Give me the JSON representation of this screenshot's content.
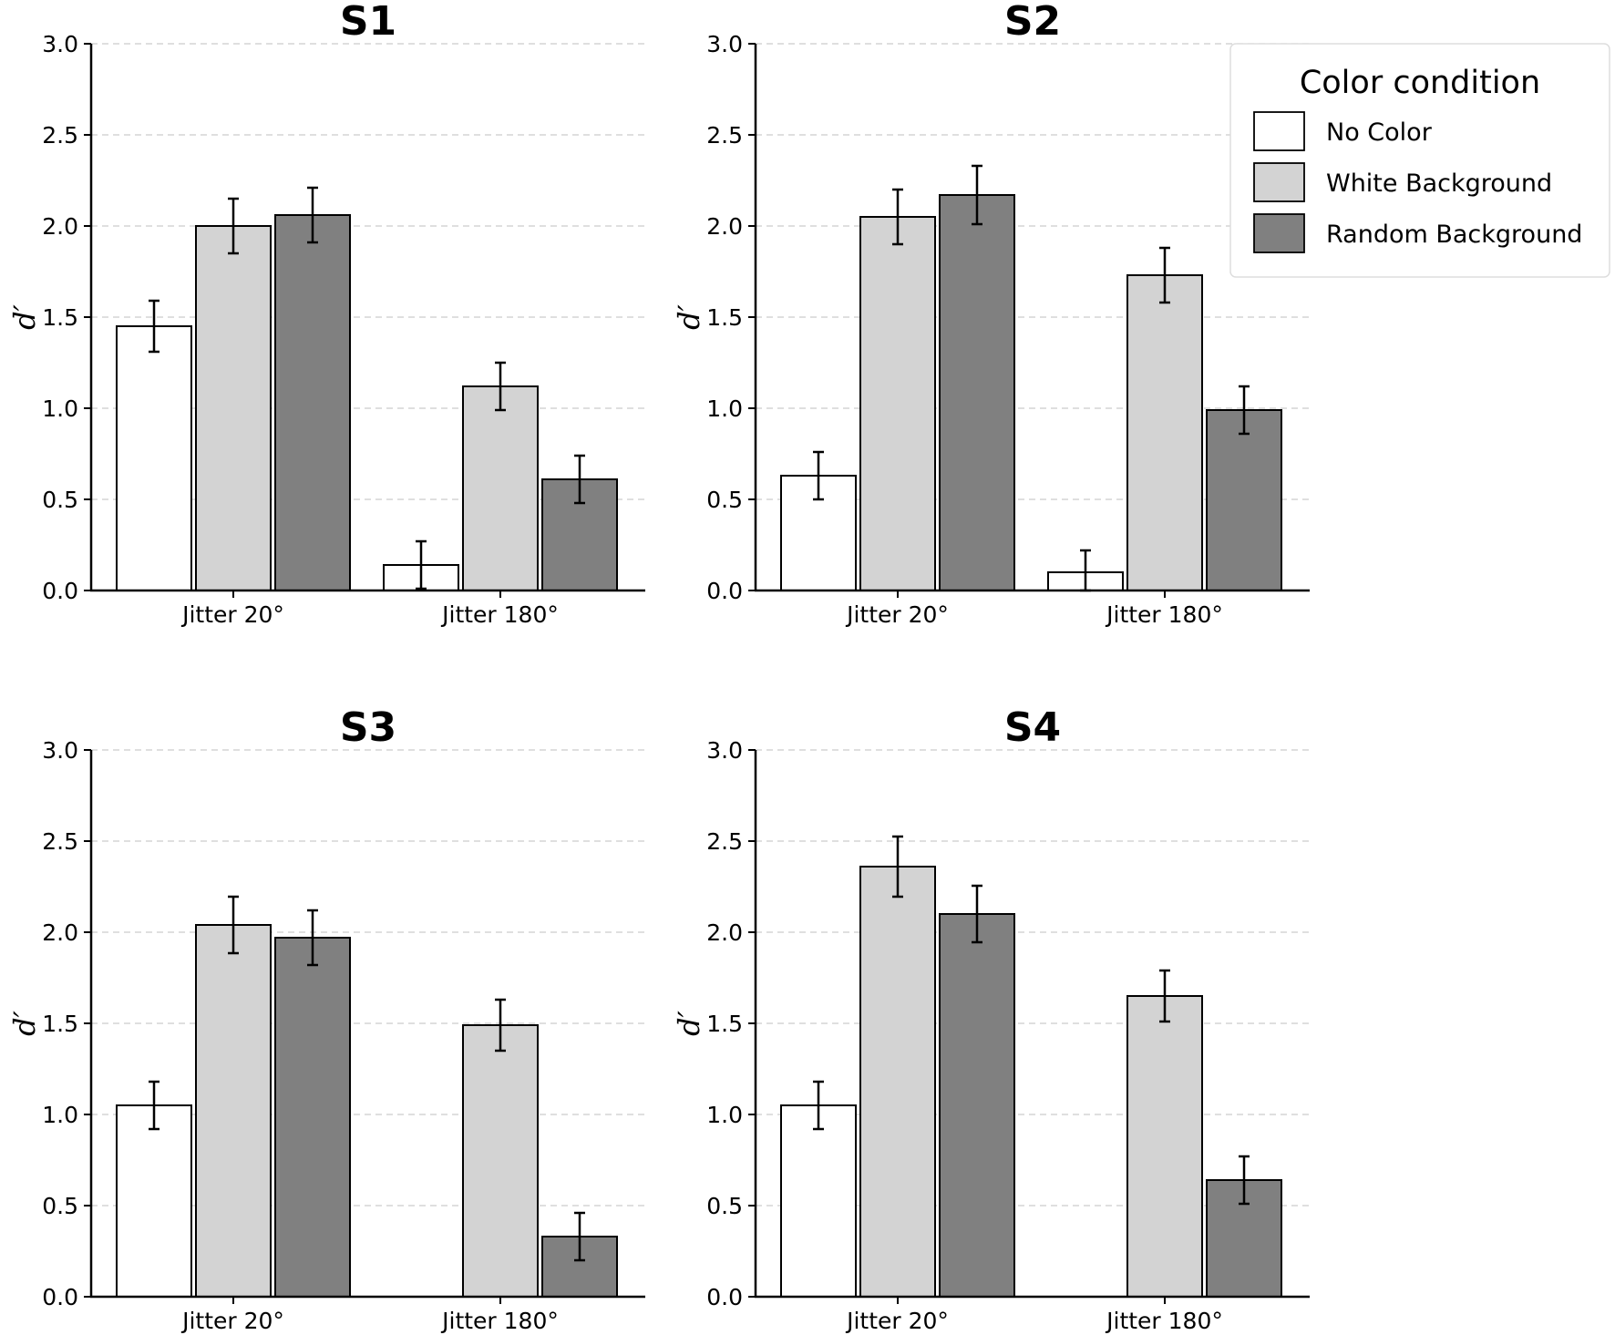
{
  "chart_data": [
    {
      "type": "bar",
      "title": "S1",
      "ylabel": "d′",
      "ylim": [
        0,
        3.0
      ],
      "yticks": [
        "0.0",
        "0.5",
        "1.0",
        "1.5",
        "2.0",
        "2.5",
        "3.0"
      ],
      "grid": "horizontal-dashed",
      "categories": [
        "Jitter 20°",
        "Jitter 180°"
      ],
      "series": [
        {
          "name": "No Color",
          "values": [
            1.45,
            0.14
          ],
          "errors": [
            0.14,
            0.13
          ]
        },
        {
          "name": "White Background",
          "values": [
            2.0,
            1.12
          ],
          "errors": [
            0.15,
            0.13
          ]
        },
        {
          "name": "Random Background",
          "values": [
            2.06,
            0.61
          ],
          "errors": [
            0.15,
            0.13
          ]
        }
      ]
    },
    {
      "type": "bar",
      "title": "S2",
      "ylabel": "d′",
      "ylim": [
        0,
        3.0
      ],
      "yticks": [
        "0.0",
        "0.5",
        "1.0",
        "1.5",
        "2.0",
        "2.5",
        "3.0"
      ],
      "grid": "horizontal-dashed",
      "categories": [
        "Jitter 20°",
        "Jitter 180°"
      ],
      "series": [
        {
          "name": "No Color",
          "values": [
            0.63,
            0.1
          ],
          "errors": [
            0.13,
            0.12
          ]
        },
        {
          "name": "White Background",
          "values": [
            2.05,
            1.73
          ],
          "errors": [
            0.15,
            0.15
          ]
        },
        {
          "name": "Random Background",
          "values": [
            2.17,
            0.99
          ],
          "errors": [
            0.16,
            0.13
          ]
        }
      ]
    },
    {
      "type": "bar",
      "title": "S3",
      "ylabel": "d′",
      "ylim": [
        0,
        3.0
      ],
      "yticks": [
        "0.0",
        "0.5",
        "1.0",
        "1.5",
        "2.0",
        "2.5",
        "3.0"
      ],
      "grid": "horizontal-dashed",
      "categories": [
        "Jitter 20°",
        "Jitter 180°"
      ],
      "series": [
        {
          "name": "No Color",
          "values": [
            1.05,
            0.0
          ],
          "errors": [
            0.13,
            0
          ]
        },
        {
          "name": "White Background",
          "values": [
            2.04,
            1.49
          ],
          "errors": [
            0.155,
            0.14
          ]
        },
        {
          "name": "Random Background",
          "values": [
            1.97,
            0.33
          ],
          "errors": [
            0.15,
            0.13
          ]
        }
      ]
    },
    {
      "type": "bar",
      "title": "S4",
      "ylabel": "d′",
      "ylim": [
        0,
        3.0
      ],
      "yticks": [
        "0.0",
        "0.5",
        "1.0",
        "1.5",
        "2.0",
        "2.5",
        "3.0"
      ],
      "grid": "horizontal-dashed",
      "categories": [
        "Jitter 20°",
        "Jitter 180°"
      ],
      "series": [
        {
          "name": "No Color",
          "values": [
            1.05,
            0.0
          ],
          "errors": [
            0.13,
            0
          ]
        },
        {
          "name": "White Background",
          "values": [
            2.36,
            1.65
          ],
          "errors": [
            0.165,
            0.14
          ]
        },
        {
          "name": "Random Background",
          "values": [
            2.1,
            0.64
          ],
          "errors": [
            0.155,
            0.13
          ]
        }
      ]
    }
  ],
  "legend": {
    "title": "Color condition",
    "placement": "top-right",
    "items": [
      {
        "label": "No Color",
        "color": "#ffffff"
      },
      {
        "label": "White Background",
        "color": "#d3d3d3"
      },
      {
        "label": "Random Background",
        "color": "#808080"
      }
    ]
  },
  "colors": {
    "series": [
      "#ffffff",
      "#d3d3d3",
      "#808080"
    ],
    "edge": "#000000",
    "grid": "#cccccc"
  }
}
